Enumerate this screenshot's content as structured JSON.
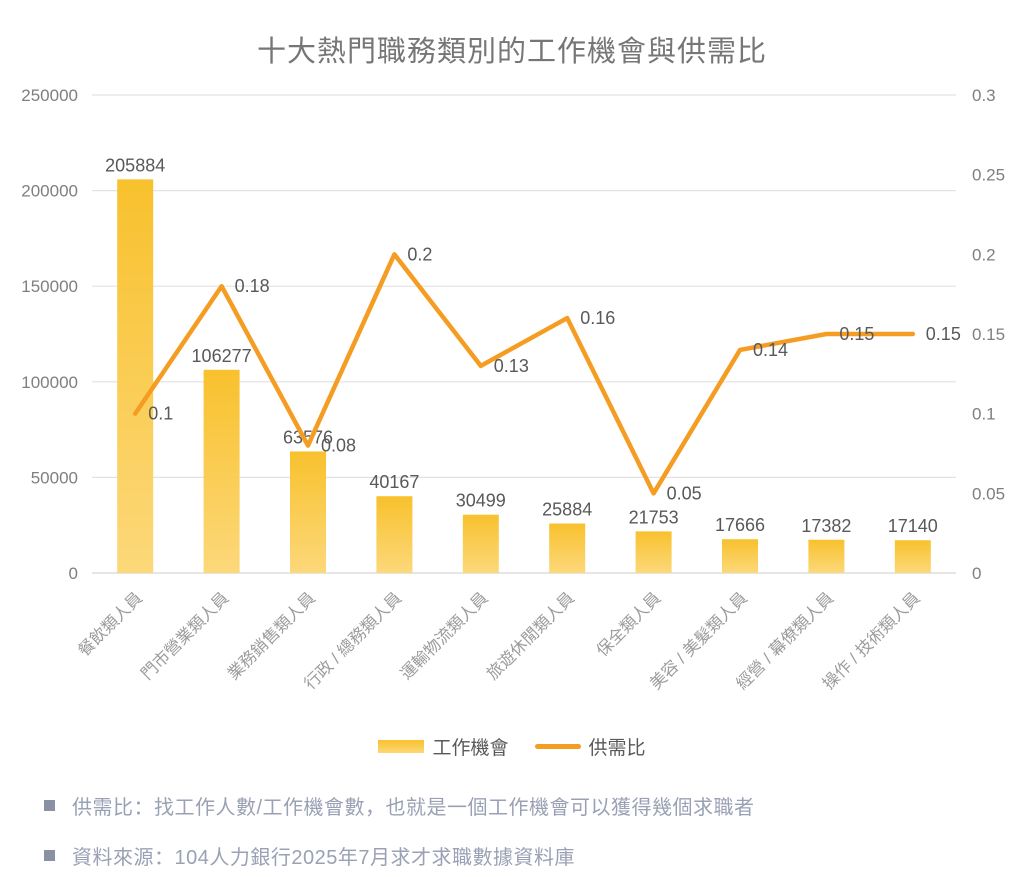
{
  "title": "十大熱門職務類別的工作機會與供需比",
  "legend": [
    {
      "label": "工作機會"
    },
    {
      "label": "供需比"
    }
  ],
  "footnotes": [
    {
      "bullet": "■",
      "text": "供需比：找工作人數/工作機會數，也就是一個工作機會可以獲得幾個求職者"
    },
    {
      "bullet": "■",
      "text": "資料來源：104人力銀行2025年7月求才求職數據資料庫"
    }
  ],
  "chart_data": {
    "type": "combo-bar-line",
    "title": "十大熱門職務類別的工作機會與供需比",
    "categories": [
      "餐飲類人員",
      "門市營業類人員",
      "業務銷售類人員",
      "行政 / 總務類人員",
      "運輸物流類人員",
      "旅遊休閒類人員",
      "保全類人員",
      "美容 / 美髮類人員",
      "經營 / 幕僚類人員",
      "操作 / 技術類人員"
    ],
    "series": [
      {
        "name": "工作機會",
        "type": "bar",
        "axis": "left",
        "values": [
          205884,
          106277,
          63576,
          40167,
          30499,
          25884,
          21753,
          17666,
          17382,
          17140
        ],
        "labels": [
          "205884",
          "106277",
          "63576",
          "40167",
          "30499",
          "25884",
          "21753",
          "17666",
          "17382",
          "17140"
        ]
      },
      {
        "name": "供需比",
        "type": "line",
        "axis": "right",
        "values": [
          0.1,
          0.18,
          0.08,
          0.2,
          0.13,
          0.16,
          0.05,
          0.14,
          0.15,
          0.15
        ],
        "labels": [
          "0.1",
          "0.18",
          "0.08",
          "0.2",
          "0.13",
          "0.16",
          "0.05",
          "0.14",
          "0.15",
          "0.15"
        ]
      }
    ],
    "left_axis": {
      "min": 0,
      "max": 250000,
      "step": 50000,
      "tick_labels": [
        "250000",
        "200000",
        "150000",
        "100000",
        "50000",
        "0"
      ]
    },
    "right_axis": {
      "min": 0,
      "max": 0.3,
      "step": 0.05,
      "tick_labels": [
        "0.3",
        "0.25",
        "0.2",
        "0.15",
        "0.1",
        "0.05",
        "0"
      ]
    },
    "grid": "horizontal",
    "legend_position": "bottom"
  },
  "colors": {
    "bar_top": "#F8C12D",
    "bar_bottom": "#FCD87A",
    "line": "#F59D23",
    "title": "#767676",
    "axis_label": "#7F7F7F",
    "data_label": "#595959",
    "category_label": "#9C9C9C",
    "gridline": "#E2E2E2",
    "axis_line": "#D6D6D6",
    "footnote_text": "#9AA1B4",
    "footnote_bullet": "#8A91A5"
  }
}
